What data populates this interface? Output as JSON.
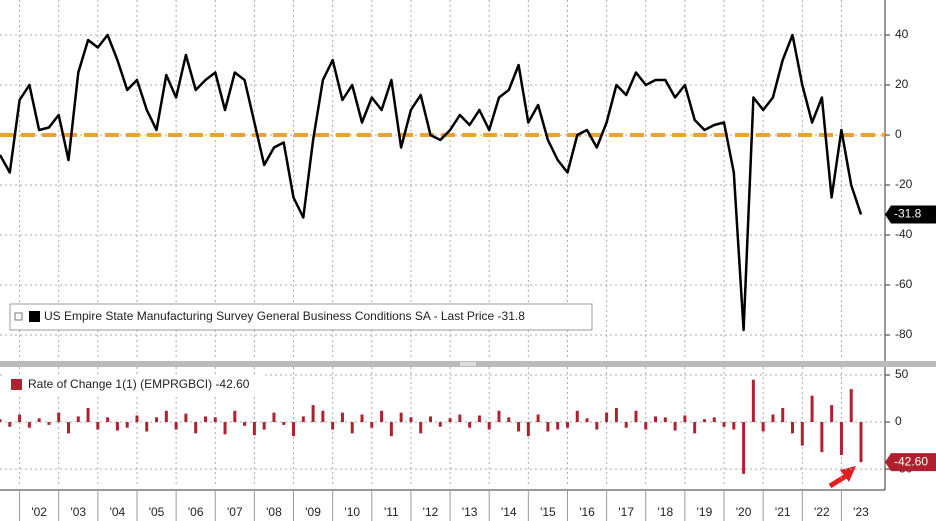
{
  "chart_data": [
    {
      "type": "line",
      "series": [
        {
          "name": "US Empire State Manufacturing Survey General Business Conditions SA - Last Price -31.8",
          "color": "#000000",
          "values": [
            -8,
            -15,
            14,
            20,
            2,
            3,
            8,
            -10,
            25,
            38,
            35,
            40,
            30,
            18,
            22,
            10,
            2,
            24,
            15,
            32,
            18,
            22,
            25,
            10,
            25,
            22,
            5,
            -12,
            -5,
            -3,
            -25,
            -33,
            -2,
            22,
            30,
            14,
            20,
            5,
            15,
            10,
            22,
            -5,
            10,
            16,
            0,
            -2,
            2,
            8,
            4,
            10,
            2,
            15,
            18,
            28,
            5,
            12,
            -2,
            -10,
            -15,
            0,
            2,
            -5,
            5,
            20,
            16,
            25,
            20,
            22,
            22,
            15,
            20,
            6,
            2,
            4,
            5,
            -15,
            -78,
            15,
            10,
            15,
            30,
            40,
            20,
            5,
            15,
            -25,
            2,
            -20,
            -31.8
          ],
          "last_label": "-31.8"
        }
      ],
      "ylim": [
        -90,
        54
      ],
      "yticks": [
        -80,
        -60,
        -40,
        -20,
        0,
        20,
        40
      ],
      "grid": true,
      "hline": {
        "value": 0,
        "color": "#f0a030"
      }
    },
    {
      "type": "bar",
      "series": [
        {
          "name": "Rate of Change 1(1) (EMPRGBCI) -42.60",
          "color": "#b0202e",
          "values": [
            3,
            -5,
            8,
            -6,
            4,
            -3,
            10,
            -12,
            6,
            15,
            -8,
            5,
            -9,
            -6,
            7,
            -10,
            5,
            12,
            -8,
            9,
            -12,
            6,
            5,
            -13,
            12,
            -4,
            -14,
            -8,
            10,
            -3,
            -15,
            6,
            18,
            12,
            -8,
            10,
            -12,
            8,
            -6,
            12,
            -15,
            10,
            5,
            -12,
            6,
            -5,
            4,
            8,
            -6,
            7,
            -8,
            12,
            5,
            -10,
            -15,
            8,
            -10,
            -8,
            -6,
            12,
            4,
            -8,
            10,
            15,
            -6,
            12,
            -8,
            6,
            5,
            -9,
            7,
            -12,
            3,
            5,
            -5,
            -8,
            -55,
            45,
            -10,
            8,
            15,
            -12,
            -25,
            28,
            -32,
            18,
            -35,
            35,
            -42.6
          ],
          "last_label": "-42.60"
        }
      ],
      "categories": [
        null,
        null,
        null,
        null,
        "'02",
        null,
        null,
        null,
        "'03",
        null,
        null,
        null,
        "'04",
        null,
        null,
        null,
        "'05",
        null,
        null,
        null,
        "'06",
        null,
        null,
        null,
        "'07",
        null,
        null,
        null,
        "'08",
        null,
        null,
        null,
        "'09",
        null,
        null,
        null,
        "'10",
        null,
        null,
        null,
        "'11",
        null,
        null,
        null,
        "'12",
        null,
        null,
        null,
        "'13",
        null,
        null,
        null,
        "'14",
        null,
        null,
        null,
        "'15",
        null,
        null,
        null,
        "'16",
        null,
        null,
        null,
        "'17",
        null,
        null,
        null,
        "'18",
        null,
        null,
        null,
        "'19",
        null,
        null,
        null,
        "'20",
        null,
        null,
        null,
        "'21",
        null,
        null,
        null,
        "'22",
        null,
        null,
        null,
        "'23"
      ],
      "ylim": [
        -69,
        58.5
      ],
      "yticks": [
        -50,
        0,
        50
      ],
      "grid": true
    }
  ]
}
